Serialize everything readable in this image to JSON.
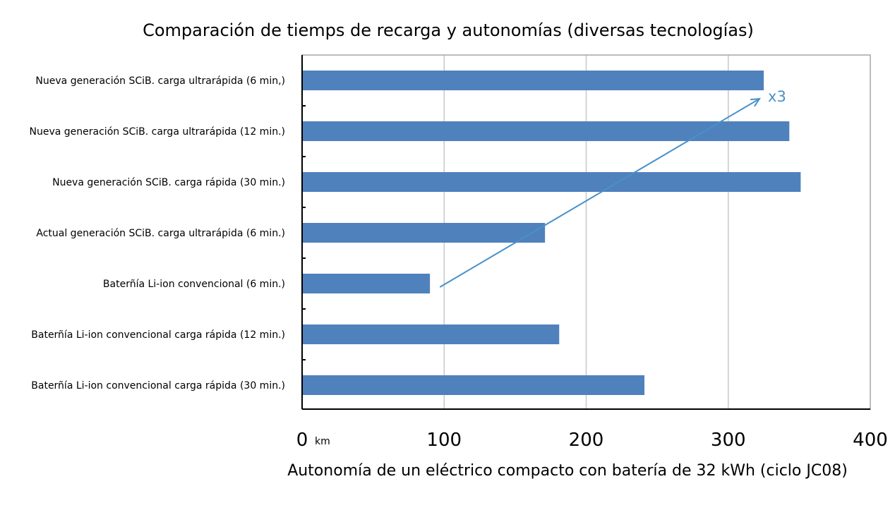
{
  "chart_data": {
    "type": "bar",
    "orientation": "horizontal",
    "title": "Comparación de tiemps de recarga y autonomías (diversas tecnologías)",
    "xlabel": "Autonomía de un eléctrico compacto con batería de 32 kWh (ciclo JC08)",
    "x_unit": "km",
    "xlim": [
      0,
      400
    ],
    "x_ticks": [
      "0",
      "100",
      "200",
      "300",
      "400"
    ],
    "grid": "vertical",
    "bar_color": "#4f81bd",
    "categories": [
      "Nueva generación SCiB. carga ultrarápida (6 min,)",
      "Nueva generación SCiB. carga ultrarápida (12 min.)",
      "Nueva generación SCiB. carga rápida (30 min.)",
      "Actual generación SCiB. carga ultrarápida (6 min.)",
      "Baterñía Li-ion convencional (6 min.)",
      "Baterñía Li-ion convencional carga rápida (12 min.)",
      "Baterñía Li-ion convencional carga rápida (30 min.)"
    ],
    "values": [
      325,
      343,
      351,
      171,
      90,
      181,
      241
    ],
    "annotation": {
      "text": "x3",
      "color": "#4a90c8",
      "arrow_from": {
        "category_index": 4,
        "value": 97
      },
      "arrow_to": {
        "category_index": 0,
        "value": 322
      }
    }
  }
}
